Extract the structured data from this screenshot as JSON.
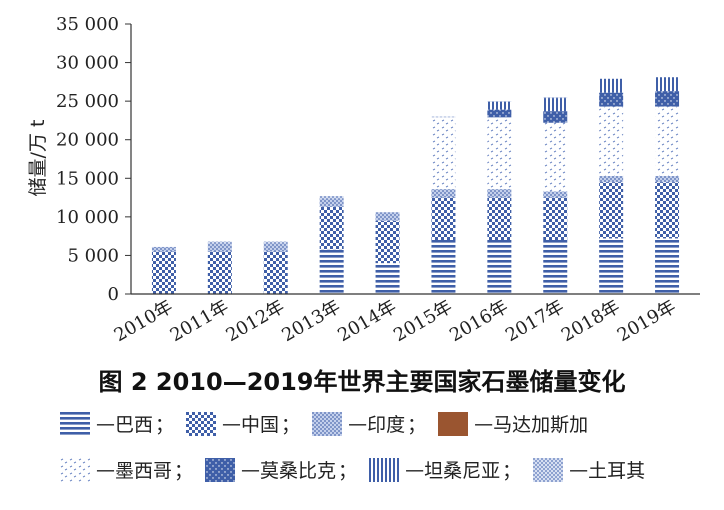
{
  "chart_data": {
    "type": "bar",
    "stacked": true,
    "categories": [
      "2010年",
      "2011年",
      "2012年",
      "2013年",
      "2014年",
      "2015年",
      "2016年",
      "2017年",
      "2018年",
      "2019年"
    ],
    "ylabel": "储量/万 t",
    "ylim": [
      0,
      35000
    ],
    "yticks": [
      0,
      5000,
      10000,
      15000,
      20000,
      25000,
      30000,
      35000
    ],
    "ytick_labels": [
      "0",
      "5 000",
      "10 000",
      "15 000",
      "20 000",
      "25 000",
      "30 000",
      "35 000"
    ],
    "series": [
      {
        "name": "巴西",
        "values": [
          0,
          0,
          0,
          5800,
          4000,
          7000,
          7000,
          7000,
          7200,
          7200
        ]
      },
      {
        "name": "中国",
        "values": [
          5500,
          5500,
          5500,
          5500,
          5500,
          5500,
          5500,
          5500,
          7300,
          7300
        ]
      },
      {
        "name": "印度",
        "values": [
          600,
          1100,
          1100,
          1100,
          1100,
          1100,
          1100,
          800,
          800,
          800
        ]
      },
      {
        "name": "马达加斯加",
        "values": [
          0,
          0,
          0,
          0,
          0,
          0,
          0,
          0,
          0,
          0
        ]
      },
      {
        "name": "墨西哥",
        "values": [
          0,
          0,
          0,
          0,
          0,
          9300,
          9300,
          8900,
          9000,
          9000
        ]
      },
      {
        "name": "莫桑比克",
        "values": [
          0,
          0,
          0,
          0,
          0,
          0,
          1000,
          1500,
          1800,
          2000
        ]
      },
      {
        "name": "坦桑尼亚",
        "values": [
          0,
          0,
          0,
          0,
          0,
          0,
          1000,
          1700,
          1800,
          1800
        ]
      },
      {
        "name": "土耳其",
        "values": [
          0,
          200,
          200,
          300,
          0,
          100,
          100,
          100,
          0,
          0
        ]
      }
    ]
  },
  "caption": "图 2   2010—2019年世界主要国家石墨储量变化",
  "legend_items": [
    {
      "name": "巴西",
      "sep": "；"
    },
    {
      "name": "中国",
      "sep": "；"
    },
    {
      "name": "印度",
      "sep": "；"
    },
    {
      "name": "马达加斯加",
      "sep": ""
    },
    {
      "name": "墨西哥",
      "sep": "；"
    },
    {
      "name": "莫桑比克",
      "sep": "；"
    },
    {
      "name": "坦桑尼亚",
      "sep": "；"
    },
    {
      "name": "土耳其",
      "sep": ""
    }
  ],
  "colors": {
    "bar_blue": "#3f5fa8",
    "bar_light": "#9fb2dc",
    "madagascar": "#9a5530",
    "axis": "#333333"
  }
}
